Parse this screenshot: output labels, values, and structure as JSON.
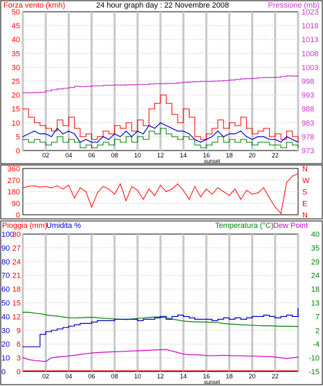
{
  "header": {
    "left_label": "Forza vento (kmh)",
    "title": "24 hour graph day : 22 Novembre 2008",
    "right_label": "Pressione (mb)"
  },
  "colors": {
    "wind": "#ff0000",
    "wind_avg": "#008000",
    "wind_mean": "#0000cc",
    "pressure": "#cc33cc",
    "direction": "#ff0000",
    "temperature": "#008000",
    "dew_point": "#cc00cc",
    "humidity": "#0000cc",
    "rain": "#ff0000",
    "grid": "#d0d0d0",
    "day_stripe": "#c8c8c8"
  },
  "bottom": {
    "left_label1": "Pioggia (mm)",
    "left_label2": "Umidita %",
    "right_label1": "Temperatura (°C)",
    "right_label2": "Dew Point"
  },
  "chart_data": [
    {
      "type": "line",
      "name": "wind_pressure",
      "x_ticks": [
        "02",
        "04",
        "06",
        "08",
        "10",
        "12",
        "14",
        "16",
        "18",
        "20",
        "22"
      ],
      "sunset_label": "sunset",
      "y_left_ticks": [
        "0",
        "5",
        "10",
        "15",
        "20",
        "25",
        "30",
        "35",
        "40",
        "45",
        "50"
      ],
      "y_right_ticks": [
        "973",
        "978",
        "983",
        "988",
        "993",
        "998",
        "1003",
        "1008",
        "1013",
        "1018",
        "1023"
      ],
      "ylim_left": [
        0,
        50
      ],
      "ylim_right": [
        973,
        1023
      ],
      "x": [
        0,
        0.5,
        1,
        1.5,
        2,
        2.5,
        3,
        3.5,
        4,
        4.5,
        5,
        5.5,
        6,
        6.5,
        7,
        7.5,
        8,
        8.5,
        9,
        9.5,
        10,
        10.5,
        11,
        11.5,
        12,
        12.5,
        13,
        13.5,
        14,
        14.5,
        15,
        15.5,
        16,
        16.5,
        17,
        17.5,
        18,
        18.5,
        19,
        19.5,
        20,
        20.5,
        21,
        21.5,
        22,
        22.5,
        23,
        23.5,
        24
      ],
      "series": [
        {
          "role": "gust",
          "values": [
            15,
            12,
            10,
            9,
            8,
            7,
            11,
            9,
            12,
            8,
            5,
            6,
            4,
            5,
            7,
            6,
            9,
            8,
            10,
            7,
            11,
            9,
            15,
            17,
            20,
            17,
            13,
            10,
            15,
            12,
            5,
            4,
            6,
            8,
            11,
            8,
            10,
            9,
            12,
            8,
            6,
            7,
            8,
            5,
            6,
            4,
            7,
            5,
            3
          ]
        },
        {
          "role": "avg",
          "values": [
            4,
            3,
            4,
            3,
            2,
            3,
            5,
            3,
            4,
            3,
            1,
            2,
            1,
            2,
            3,
            2,
            4,
            3,
            5,
            3,
            5,
            4,
            7,
            6,
            8,
            6,
            5,
            4,
            5,
            4,
            2,
            1,
            2,
            3,
            5,
            3,
            4,
            3,
            4,
            3,
            2,
            3,
            3,
            2,
            2,
            1,
            3,
            2,
            1
          ]
        },
        {
          "role": "mean",
          "values": [
            5,
            6,
            7,
            6,
            6,
            5,
            8,
            6,
            7,
            6,
            3,
            4,
            3,
            3,
            5,
            4,
            6,
            5,
            7,
            5,
            7,
            6,
            9,
            8,
            10,
            9,
            8,
            7,
            7,
            6,
            4,
            3,
            4,
            5,
            7,
            5,
            6,
            6,
            7,
            5,
            4,
            5,
            5,
            4,
            4,
            3,
            5,
            4,
            3
          ]
        },
        {
          "role": "pressure",
          "values": [
            993.8,
            993.8,
            993.9,
            994.0,
            994.5,
            994.9,
            995.2,
            995.4,
            995.7,
            996.1,
            996.0,
            996.1,
            996.3,
            996.3,
            996.5,
            996.5,
            996.6,
            996.6,
            996.7,
            996.7,
            996.8,
            996.8,
            997.0,
            997.1,
            997.1,
            997.2,
            997.2,
            997.4,
            997.6,
            997.7,
            997.8,
            997.9,
            997.9,
            998.0,
            998.1,
            998.2,
            998.4,
            998.6,
            998.8,
            998.9,
            999.0,
            999.2,
            999.3,
            999.3,
            999.4,
            999.7,
            999.9,
            999.8,
            999.9
          ]
        }
      ]
    },
    {
      "type": "line",
      "name": "wind_direction",
      "x_ticks": [
        "02",
        "04",
        "06",
        "08",
        "10",
        "12",
        "14",
        "16",
        "18",
        "20",
        "22"
      ],
      "y_left_ticks": [
        "0",
        "90",
        "180",
        "270",
        "360"
      ],
      "y_right_ticks": [
        "N",
        "E",
        "S",
        "W",
        "N"
      ],
      "ylim": [
        0,
        360
      ],
      "x": [
        0,
        0.5,
        1,
        1.5,
        2,
        2.5,
        3,
        3.5,
        4,
        4.5,
        5,
        5.5,
        6,
        6.5,
        7,
        7.5,
        8,
        8.5,
        9,
        9.5,
        10,
        10.5,
        11,
        11.5,
        12,
        12.5,
        13,
        13.5,
        14,
        14.5,
        15,
        15.5,
        16,
        16.5,
        17,
        17.5,
        18,
        18.5,
        19,
        19.5,
        20,
        20.5,
        21,
        21.5,
        22,
        22.5,
        23,
        23.5,
        24
      ],
      "values": [
        210,
        220,
        225,
        215,
        220,
        210,
        225,
        200,
        230,
        130,
        210,
        180,
        60,
        170,
        220,
        200,
        160,
        240,
        110,
        220,
        190,
        120,
        200,
        150,
        230,
        180,
        200,
        240,
        190,
        120,
        220,
        140,
        200,
        160,
        210,
        180,
        150,
        200,
        120,
        190,
        160,
        170,
        210,
        130,
        60,
        10,
        250,
        300,
        320
      ]
    },
    {
      "type": "line",
      "name": "rain_humidity_temp",
      "x_ticks": [
        "02",
        "04",
        "06",
        "08",
        "10",
        "12",
        "14",
        "16",
        "18",
        "20",
        "22"
      ],
      "sunset_label": "sunset",
      "y_rain_ticks": [
        "0",
        "3",
        "6",
        "9",
        "12",
        "15",
        "18",
        "21",
        "24",
        "27",
        "30"
      ],
      "y_humidity_ticks": [
        "0",
        "10",
        "20",
        "30",
        "40",
        "50",
        "60",
        "70",
        "80",
        "90",
        "100"
      ],
      "y_temp_ticks": [
        "-15",
        "-10",
        "-4",
        "2",
        "7",
        "13",
        "18",
        "24",
        "29",
        "35",
        "40"
      ],
      "ylim_humidity": [
        0,
        100
      ],
      "ylim_temp": [
        -15,
        40
      ],
      "x": [
        0,
        0.5,
        1,
        1.5,
        2,
        2.5,
        3,
        3.5,
        4,
        4.5,
        5,
        5.5,
        6,
        6.5,
        7,
        7.5,
        8,
        8.5,
        9,
        9.5,
        10,
        10.5,
        11,
        11.5,
        12,
        12.5,
        13,
        13.5,
        14,
        14.5,
        15,
        15.5,
        16,
        16.5,
        17,
        17.5,
        18,
        18.5,
        19,
        19.5,
        20,
        20.5,
        21,
        21.5,
        22,
        22.5,
        23,
        23.5,
        24
      ],
      "series": [
        {
          "role": "temperature",
          "values": [
            8.7,
            8.7,
            8.4,
            8.1,
            7.7,
            7.4,
            7.2,
            6.8,
            6.5,
            6.4,
            6.5,
            6.6,
            6.7,
            6.5,
            6.3,
            6.2,
            6.0,
            5.9,
            5.8,
            6.0,
            6.2,
            6.4,
            6.6,
            6.8,
            6.8,
            6.5,
            6.0,
            5.6,
            5.2,
            5.0,
            4.9,
            4.8,
            4.8,
            4.7,
            4.6,
            4.2,
            4.0,
            3.9,
            3.7,
            3.6,
            3.5,
            3.4,
            3.3,
            3.3,
            3.2,
            3.1,
            3.1,
            3.1,
            3.0
          ]
        },
        {
          "role": "dew_point",
          "values": [
            -9.5,
            -10.2,
            -10.6,
            -10.8,
            -11.0,
            -9.5,
            -9.2,
            -9.0,
            -8.8,
            -8.5,
            -8.2,
            -7.9,
            -7.6,
            -7.4,
            -7.3,
            -7.2,
            -7.1,
            -7.0,
            -6.9,
            -6.8,
            -6.7,
            -6.6,
            -6.5,
            -6.4,
            -6.3,
            -6.2,
            -6.8,
            -7.4,
            -8.0,
            -8.3,
            -8.3,
            -8.4,
            -8.6,
            -8.7,
            -8.6,
            -8.5,
            -8.6,
            -8.7,
            -8.7,
            -8.8,
            -8.8,
            -8.9,
            -9.0,
            -9.0,
            -9.2,
            -9.5,
            -9.8,
            -9.5,
            -9.2
          ]
        },
        {
          "role": "humidity",
          "values": [
            18,
            18,
            18,
            27,
            29,
            30,
            31,
            32,
            33,
            34,
            35,
            35,
            36,
            37,
            37,
            37,
            38,
            38,
            38,
            38,
            37,
            38,
            38,
            39,
            40,
            38,
            40,
            41,
            40,
            39,
            38,
            38,
            38,
            37,
            38,
            39,
            38,
            39,
            38,
            39,
            40,
            40,
            41,
            40,
            39,
            40,
            41,
            40,
            46
          ]
        },
        {
          "role": "rain",
          "values": [
            0,
            0,
            0,
            0,
            0,
            0,
            0,
            0,
            0,
            0,
            0,
            0,
            0,
            0,
            0,
            0,
            0,
            0,
            0,
            0,
            0,
            0,
            0,
            0,
            0,
            0,
            0,
            0,
            0,
            0,
            0,
            0,
            0,
            0,
            0,
            0,
            0,
            0,
            0,
            0,
            0,
            0,
            0,
            0,
            0,
            0,
            0,
            0,
            0
          ]
        }
      ]
    }
  ]
}
